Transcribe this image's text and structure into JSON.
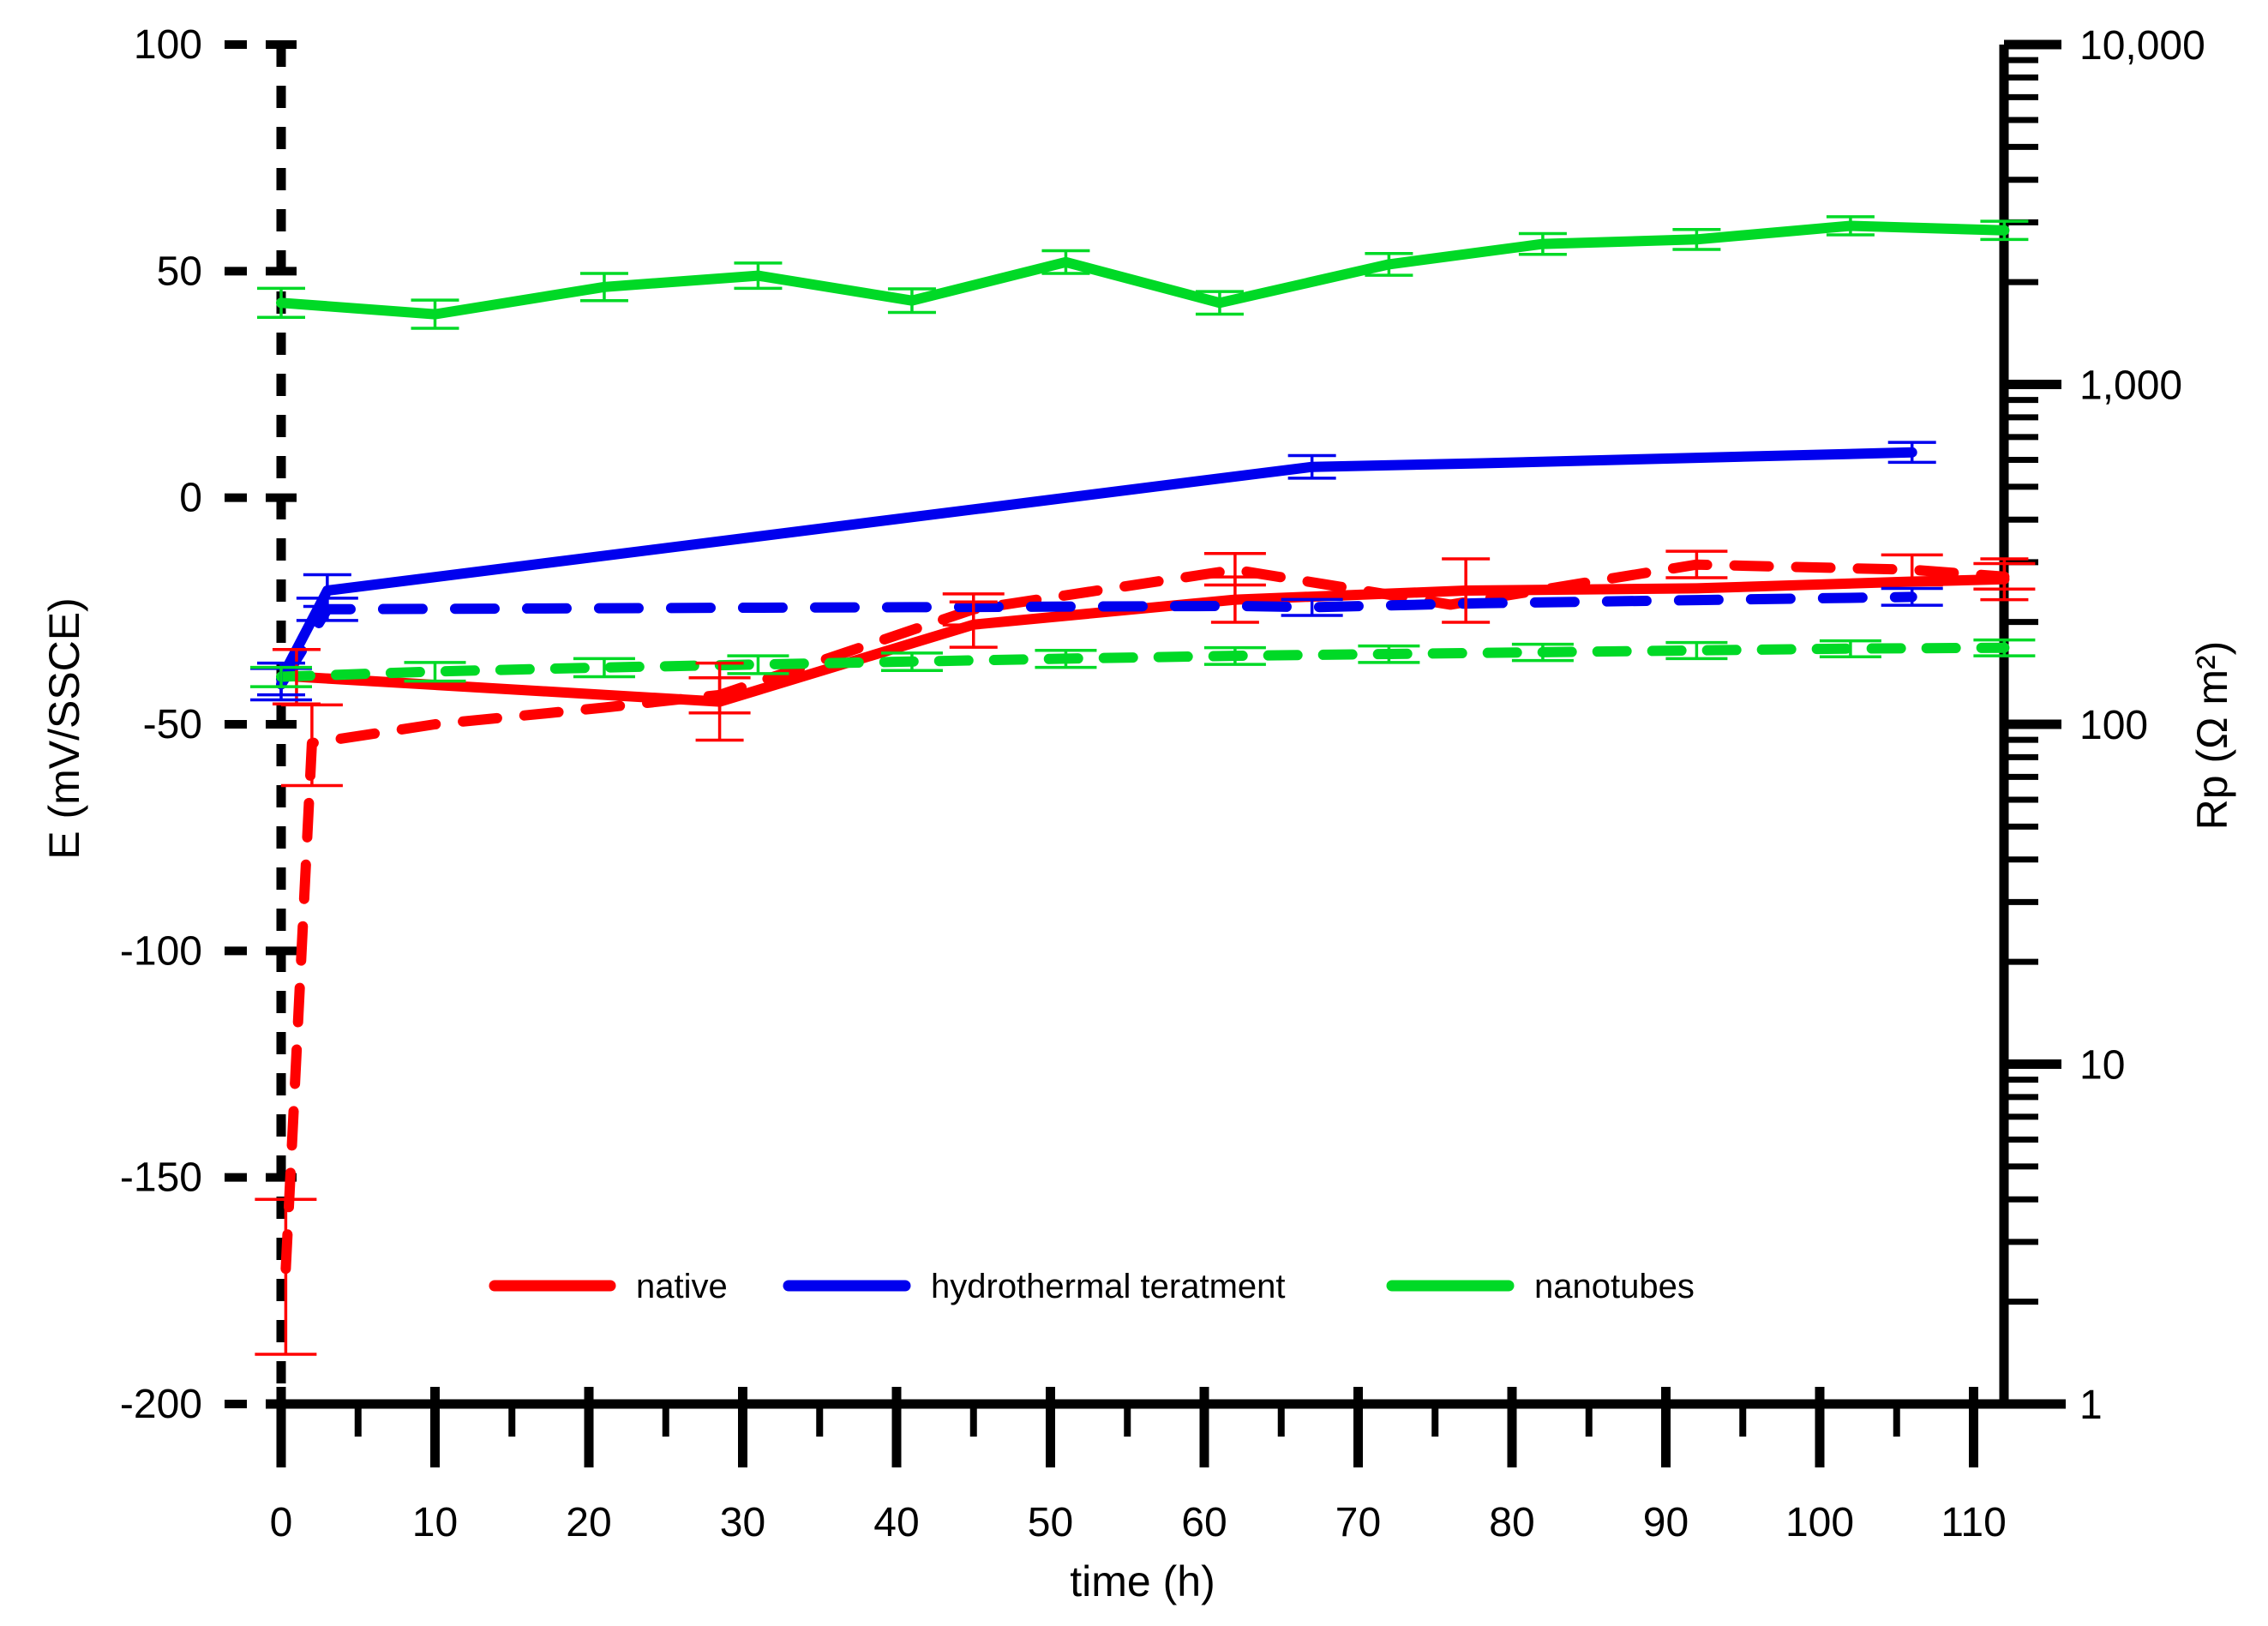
{
  "chart_data": {
    "type": "line",
    "title": "",
    "x_axis": {
      "label": "time (h)",
      "ticks": [
        0,
        10,
        20,
        30,
        40,
        50,
        60,
        70,
        80,
        90,
        100,
        110
      ],
      "minor_tick_step": 5,
      "range": [
        0,
        112
      ]
    },
    "y_left": {
      "label": "E (mV/SSCE)",
      "ticks": [
        100,
        50,
        0,
        -50,
        -100,
        -150,
        -200
      ],
      "range": [
        -200,
        100
      ],
      "axis_style": "dashed"
    },
    "y_right": {
      "label": "Rp (Ω m²)",
      "scale": "log",
      "tick_labels": [
        "10,000",
        "1,000",
        "100",
        "10",
        "1"
      ],
      "tick_values": [
        10000,
        1000,
        100,
        10,
        1
      ],
      "range": [
        1,
        10000
      ]
    },
    "legend": [
      {
        "label": "native",
        "color": "#ff0000"
      },
      {
        "label": "hydrothermal teratment",
        "color": "#0000ee"
      },
      {
        "label": "nanotubes",
        "color": "#00d926"
      }
    ],
    "series": [
      {
        "name": "native-E",
        "legend": "native",
        "axis": "left",
        "style": "solid",
        "color": "#ff0000",
        "points": [
          {
            "t": 1,
            "v": -39.5,
            "err": 6
          },
          {
            "t": 28.5,
            "v": -45,
            "err": 8.5
          },
          {
            "t": 45,
            "v": -28,
            "err": 5
          },
          {
            "t": 62,
            "v": -22.5,
            "err": 5
          },
          {
            "t": 77,
            "v": -20.5,
            "err": 7
          },
          {
            "t": 92,
            "v": -20,
            "err": 0
          },
          {
            "t": 106,
            "v": -18.5,
            "err": 0
          },
          {
            "t": 112,
            "v": -18,
            "err": 4.5
          }
        ]
      },
      {
        "name": "native-Rp",
        "legend": "native",
        "axis": "right",
        "style": "dashed",
        "color": "#ff0000",
        "points": [
          {
            "t": 0.3,
            "v": 2.5,
            "errm": 1.1,
            "errp": 1.5
          },
          {
            "t": 2,
            "v": 88,
            "errm": 22,
            "errp": 26
          },
          {
            "t": 10,
            "v": 100,
            "errm": 0,
            "errp": 0
          },
          {
            "t": 21,
            "v": 112,
            "errm": 0,
            "errp": 0
          },
          {
            "t": 28.5,
            "v": 122,
            "errm": 14,
            "errp": 15
          },
          {
            "t": 45,
            "v": 218,
            "errm": 22,
            "errp": 24
          },
          {
            "t": 62,
            "v": 285,
            "errm": 28,
            "errp": 33
          },
          {
            "t": 76,
            "v": 225,
            "errm": 0,
            "errp": 0
          },
          {
            "t": 92,
            "v": 295,
            "errm": 25,
            "errp": 28
          },
          {
            "t": 106,
            "v": 285,
            "errm": 28,
            "errp": 30
          },
          {
            "t": 112,
            "v": 272,
            "errm": 22,
            "errp": 25
          }
        ]
      },
      {
        "name": "hydrothermal-E",
        "legend": "hydrothermal teratment",
        "axis": "left",
        "style": "solid",
        "color": "#0000ee",
        "points": [
          {
            "t": 0,
            "v": -40,
            "err": 3.5
          },
          {
            "t": 3,
            "v": -20.5,
            "err": 3.5
          },
          {
            "t": 67,
            "v": 6.8,
            "err": 2.5
          },
          {
            "t": 78,
            "v": 7.6,
            "err": 0
          },
          {
            "t": 92,
            "v": 8.8,
            "err": 0
          },
          {
            "t": 106,
            "v": 10,
            "err": 2.2
          }
        ]
      },
      {
        "name": "hydrothermal-Rp",
        "legend": "hydrothermal teratment",
        "axis": "right",
        "style": "dashed",
        "color": "#0000ee",
        "points": [
          {
            "t": 0,
            "v": 131,
            "errm": 13,
            "errp": 15
          },
          {
            "t": 3,
            "v": 218,
            "errm": 16,
            "errp": 17
          },
          {
            "t": 21,
            "v": 219.5,
            "errm": 0,
            "errp": 0
          },
          {
            "t": 41,
            "v": 221,
            "errm": 0,
            "errp": 0
          },
          {
            "t": 62,
            "v": 223,
            "errm": 0,
            "errp": 0
          },
          {
            "t": 67,
            "v": 221,
            "errm": 12,
            "errp": 12
          },
          {
            "t": 78,
            "v": 227,
            "errm": 0,
            "errp": 0
          },
          {
            "t": 92,
            "v": 232,
            "errm": 0,
            "errp": 0
          },
          {
            "t": 106,
            "v": 237,
            "errm": 13,
            "errp": 14
          }
        ]
      },
      {
        "name": "nanotubes-E",
        "legend": "nanotubes",
        "axis": "left",
        "style": "solid",
        "color": "#00d926",
        "points": [
          {
            "t": 0,
            "v": 43,
            "err": 3.2
          },
          {
            "t": 10,
            "v": 40.5,
            "err": 3.1
          },
          {
            "t": 21,
            "v": 46.5,
            "err": 3.0
          },
          {
            "t": 31,
            "v": 49,
            "err": 2.8
          },
          {
            "t": 41,
            "v": 43.5,
            "err": 2.6
          },
          {
            "t": 51,
            "v": 52,
            "err": 2.5
          },
          {
            "t": 61,
            "v": 43,
            "err": 2.5
          },
          {
            "t": 72,
            "v": 51.5,
            "err": 2.4
          },
          {
            "t": 82,
            "v": 56,
            "err": 2.3
          },
          {
            "t": 92,
            "v": 57,
            "err": 2.2
          },
          {
            "t": 102,
            "v": 60,
            "err": 2.0
          },
          {
            "t": 112,
            "v": 59,
            "err": 2.0
          }
        ]
      },
      {
        "name": "nanotubes-Rp",
        "legend": "nanotubes",
        "axis": "right",
        "style": "dashed",
        "color": "#00d926",
        "points": [
          {
            "t": 0,
            "v": 138,
            "errm": 9,
            "errp": 9
          },
          {
            "t": 10,
            "v": 143,
            "errm": 9,
            "errp": 9
          },
          {
            "t": 21,
            "v": 147,
            "errm": 9,
            "errp": 9
          },
          {
            "t": 31,
            "v": 150,
            "errm": 9,
            "errp": 9
          },
          {
            "t": 41,
            "v": 153,
            "errm": 9,
            "errp": 9
          },
          {
            "t": 51,
            "v": 156,
            "errm": 9,
            "errp": 9
          },
          {
            "t": 62,
            "v": 159,
            "errm": 9,
            "errp": 9
          },
          {
            "t": 72,
            "v": 161,
            "errm": 9,
            "errp": 9
          },
          {
            "t": 82,
            "v": 163,
            "errm": 9,
            "errp": 9
          },
          {
            "t": 92,
            "v": 165,
            "errm": 9,
            "errp": 9
          },
          {
            "t": 102,
            "v": 167,
            "errm": 9,
            "errp": 9
          },
          {
            "t": 112,
            "v": 168,
            "errm": 9,
            "errp": 9
          }
        ]
      }
    ],
    "legend_position": "bottom-inside",
    "grid": false
  }
}
